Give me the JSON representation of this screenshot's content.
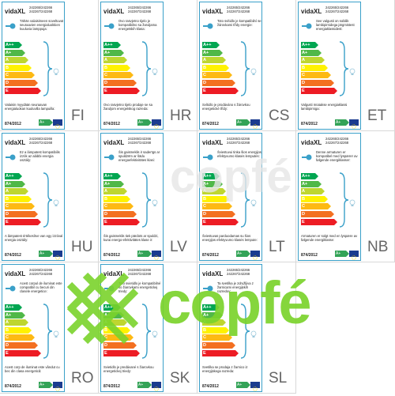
{
  "brand": "vidaXL",
  "models": [
    "242265/242266",
    "242267/242268"
  ],
  "regulation": "874/2012",
  "energy_classes": [
    "A++",
    "A+",
    "A",
    "B",
    "C",
    "D",
    "E"
  ],
  "arrow_label": "A+",
  "colors": {
    "A++": "#00a651",
    "A+": "#50b848",
    "A": "#bed630",
    "B": "#fff200",
    "C": "#fdb913",
    "D": "#f37021",
    "E": "#ed1c24",
    "label_border": "#3aa0c9",
    "watermark": "#7bd32c"
  },
  "watermark": "copfé",
  "labels": [
    {
      "lang": "FI",
      "desc": "Tähän valaisimeen soveltuvat seuraavien energialuokkien kuuluvia lamppuja:",
      "foot": "Valaisin myydään seuraavan energialuokan kuuluvilla lampuilla:"
    },
    {
      "lang": "HR",
      "desc": "Ovo rasvjetno tijelo je kompatibilno sa žaruljama energetskih klasa:",
      "foot": "Ovo rasvjetno tijelo prodaje se sa žaruljom energetskog razreda:"
    },
    {
      "lang": "CS",
      "desc": "Toto svítidlo je kompatibilní se žárovkami třídy energie:",
      "foot": "Svítidlo je prodáváno s žárovkou energetické třídy:"
    },
    {
      "lang": "ET",
      "desc": "See valgusti on sobilik lambipirnidega järgmistest energiaklassidest:",
      "foot": "Valgusti müüakse energiaklassi lambipirniga:"
    },
    {
      "lang": "HU",
      "desc": "Ez a lámpatest kompatibilis izzók az alábbi energia osztály:",
      "foot": "A lámpatest értékesítve van egy izzóval energia osztály:"
    },
    {
      "lang": "LV",
      "desc": "Šis gaismeklis ir saderīgs ar spuldzēm ar šādu energoefektivitātes klasi:",
      "foot": "Šis gaismeklis tiek pārdots ar spuldzi, kurai energo-efektivitātes klase ir:"
    },
    {
      "lang": "LT",
      "desc": "Šviestuvui tinka šios energijos efektyvumo klasės lemputės:",
      "foot": "Šviestuvas parduodamas su šios energijos efektyvumo klasės lempute:"
    },
    {
      "lang": "NB",
      "desc": "Denne armaturen er kompatibel med lyspærer av følgende energiklasser:",
      "foot": "Armaturen er solgt med en lyspære av følgende energiklasse:"
    },
    {
      "lang": "RO",
      "desc": "Acest corpul de iluminat este compatibil cu becuri din clasele energetice:",
      "foot": "Acest corp de iluminat este vândut cu bec din clasa energetică:"
    },
    {
      "lang": "SK",
      "desc": "Toto svietidlo je kompatibilné so žiarovkami energetickej triedy:",
      "foot": "Svietidlo je predávané s žiarovkou energetickej triedy:"
    },
    {
      "lang": "SL",
      "desc": "Ta svetilka je združljiva z žarnicami energijskih razredov:",
      "foot": "Svetilka se prodaja z žarnico iz energijskega razreda:"
    }
  ]
}
